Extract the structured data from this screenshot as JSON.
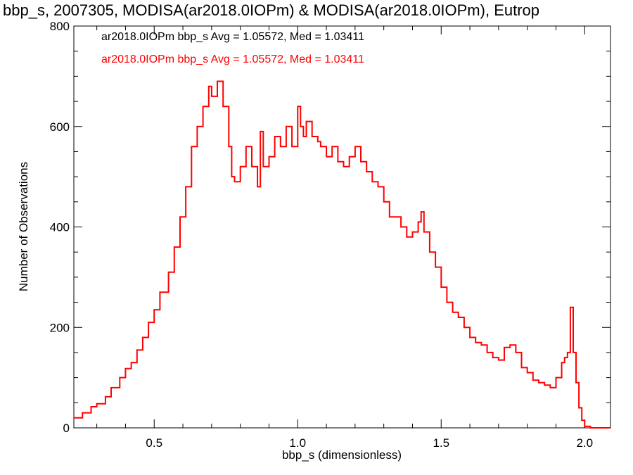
{
  "colors": {
    "background": "#ffffff",
    "axis": "#000000",
    "series1": "#000000",
    "series2": "#ff0000"
  },
  "chart_data": {
    "type": "line",
    "style": "step",
    "title": "bbp_s, 2007305, MODISA(ar2018.0IOPm) & MODISA(ar2018.0IOPm), Eutrop",
    "xlabel": "bbp_s (dimensionless)",
    "ylabel": "Number of Observations",
    "xlim": [
      0.22,
      2.09
    ],
    "ylim": [
      0,
      800
    ],
    "xticks": [
      {
        "value": 0.5,
        "label": "0.5"
      },
      {
        "value": 1.0,
        "label": "1.0"
      },
      {
        "value": 1.5,
        "label": "1.5"
      },
      {
        "value": 2.0,
        "label": "2.0"
      }
    ],
    "yticks": [
      {
        "value": 0,
        "label": "0"
      },
      {
        "value": 200,
        "label": "200"
      },
      {
        "value": 400,
        "label": "400"
      },
      {
        "value": 600,
        "label": "600"
      },
      {
        "value": 800,
        "label": "800"
      }
    ],
    "xminor_step": 0.1,
    "yminor_step": 50,
    "annotations": [
      "ar2018.0IOPm bbp_s Avg = 1.05572, Med = 1.03411",
      "ar2018.0IOPm bbp_s Avg = 1.05572, Med = 1.03411"
    ],
    "series": [
      {
        "color": "#ff0000",
        "x": [
          0.22,
          0.25,
          0.28,
          0.3,
          0.33,
          0.35,
          0.38,
          0.4,
          0.42,
          0.44,
          0.46,
          0.48,
          0.5,
          0.52,
          0.55,
          0.57,
          0.59,
          0.61,
          0.63,
          0.65,
          0.67,
          0.69,
          0.7,
          0.72,
          0.74,
          0.76,
          0.77,
          0.78,
          0.8,
          0.82,
          0.84,
          0.86,
          0.87,
          0.88,
          0.9,
          0.92,
          0.94,
          0.96,
          0.98,
          1.0,
          1.01,
          1.02,
          1.03,
          1.05,
          1.07,
          1.08,
          1.1,
          1.12,
          1.14,
          1.16,
          1.18,
          1.2,
          1.22,
          1.24,
          1.26,
          1.28,
          1.3,
          1.32,
          1.34,
          1.36,
          1.38,
          1.4,
          1.42,
          1.43,
          1.44,
          1.46,
          1.48,
          1.5,
          1.52,
          1.54,
          1.56,
          1.58,
          1.6,
          1.62,
          1.64,
          1.66,
          1.68,
          1.7,
          1.72,
          1.74,
          1.76,
          1.78,
          1.8,
          1.82,
          1.84,
          1.86,
          1.88,
          1.9,
          1.92,
          1.93,
          1.94,
          1.95,
          1.96,
          1.97,
          1.98,
          1.99,
          2.0,
          2.02,
          2.04,
          2.09
        ],
        "y": [
          20,
          30,
          42,
          48,
          62,
          80,
          100,
          118,
          130,
          155,
          180,
          210,
          235,
          270,
          310,
          360,
          420,
          480,
          560,
          600,
          640,
          680,
          660,
          690,
          640,
          560,
          500,
          490,
          520,
          560,
          520,
          480,
          590,
          520,
          540,
          580,
          560,
          600,
          560,
          640,
          600,
          580,
          610,
          580,
          570,
          560,
          540,
          560,
          530,
          520,
          540,
          560,
          530,
          510,
          490,
          480,
          450,
          420,
          420,
          400,
          380,
          390,
          410,
          430,
          390,
          350,
          320,
          280,
          250,
          230,
          220,
          200,
          180,
          170,
          165,
          150,
          140,
          135,
          160,
          165,
          150,
          120,
          110,
          95,
          90,
          85,
          80,
          100,
          130,
          140,
          150,
          240,
          150,
          90,
          40,
          15,
          3,
          0,
          0,
          0
        ]
      }
    ]
  }
}
